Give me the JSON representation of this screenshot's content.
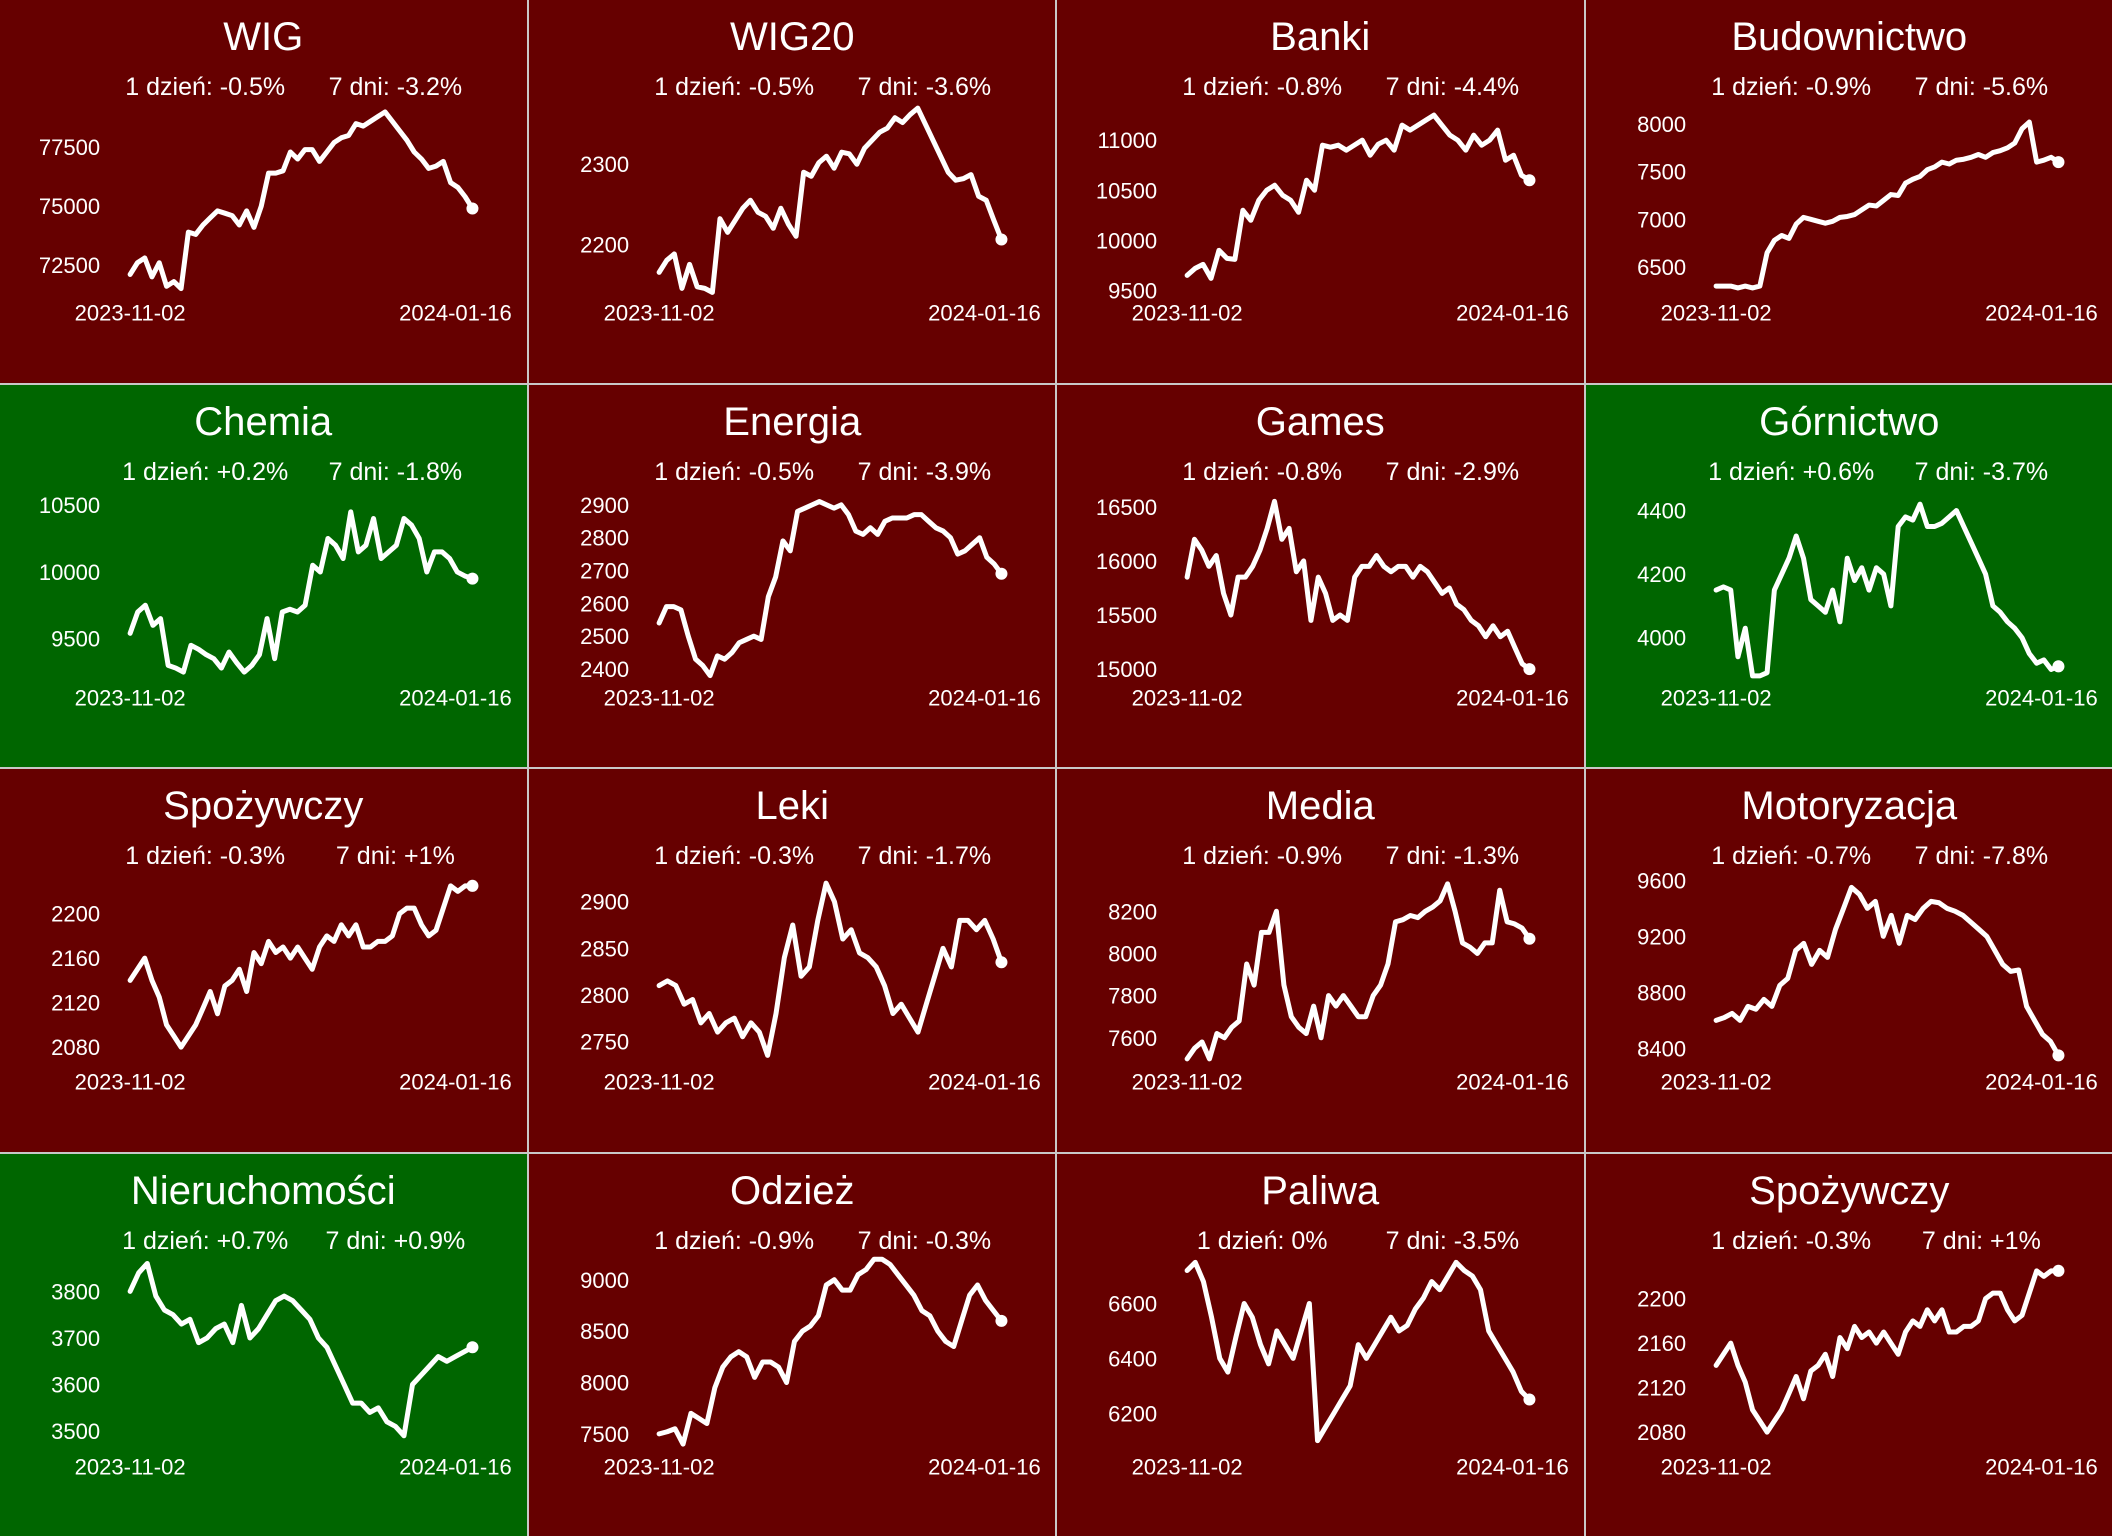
{
  "colors": {
    "down": "#660000",
    "up": "#006600",
    "line": "#ffffff",
    "border": "#c8c8c8"
  },
  "chart_data": [
    {
      "type": "line",
      "title": "WIG",
      "color": "down",
      "day_label": "1 dzień: -0.5%",
      "week_label": "7 dni: -3.2%",
      "x_start": "2023-11-02",
      "x_end": "2024-01-16",
      "yticks": [
        "72500",
        "75000",
        "77500"
      ],
      "ylim": [
        71000,
        79500
      ],
      "values": [
        72100,
        72600,
        72800,
        72000,
        72600,
        71600,
        71800,
        71500,
        73900,
        73800,
        74200,
        74500,
        74800,
        74700,
        74600,
        74200,
        74800,
        74100,
        75000,
        76400,
        76400,
        76500,
        77300,
        77000,
        77400,
        77400,
        76900,
        77300,
        77700,
        77900,
        78000,
        78500,
        78400,
        78600,
        78800,
        79000,
        78600,
        78200,
        77800,
        77300,
        77000,
        76600,
        76700,
        76900,
        76000,
        75800,
        75400,
        74900
      ]
    },
    {
      "type": "line",
      "title": "WIG20",
      "color": "down",
      "day_label": "1 dzień: -0.5%",
      "week_label": "7 dni: -3.6%",
      "x_start": "2023-11-02",
      "x_end": "2024-01-16",
      "yticks": [
        "2200",
        "2300"
      ],
      "ylim": [
        2130,
        2380
      ],
      "values": [
        2165,
        2180,
        2188,
        2145,
        2175,
        2147,
        2145,
        2140,
        2232,
        2215,
        2230,
        2245,
        2255,
        2240,
        2235,
        2220,
        2245,
        2225,
        2210,
        2290,
        2285,
        2302,
        2310,
        2295,
        2315,
        2313,
        2300,
        2320,
        2330,
        2340,
        2345,
        2358,
        2352,
        2362,
        2370,
        2350,
        2330,
        2310,
        2290,
        2280,
        2282,
        2287,
        2260,
        2255,
        2230,
        2206
      ]
    },
    {
      "type": "line",
      "title": "Banki",
      "color": "down",
      "day_label": "1 dzień: -0.8%",
      "week_label": "7 dni: -4.4%",
      "x_start": "2023-11-02",
      "x_end": "2024-01-16",
      "yticks": [
        "9500",
        "10000",
        "10500",
        "11000"
      ],
      "ylim": [
        9400,
        11400
      ],
      "values": [
        9650,
        9720,
        9760,
        9620,
        9900,
        9820,
        9810,
        10300,
        10200,
        10400,
        10500,
        10550,
        10450,
        10400,
        10280,
        10600,
        10500,
        10950,
        10930,
        10950,
        10900,
        10950,
        11000,
        10850,
        10960,
        11000,
        10900,
        11150,
        11100,
        11150,
        11200,
        11250,
        11150,
        11050,
        11000,
        10900,
        11050,
        10950,
        11000,
        11100,
        10800,
        10850,
        10650,
        10600
      ]
    },
    {
      "type": "line",
      "title": "Budownictwo",
      "color": "down",
      "day_label": "1 dzień: -0.9%",
      "week_label": "7 dni: -5.6%",
      "x_start": "2023-11-02",
      "x_end": "2024-01-16",
      "yticks": [
        "6500",
        "7000",
        "7500",
        "8000"
      ],
      "ylim": [
        6150,
        8250
      ],
      "values": [
        6300,
        6300,
        6300,
        6280,
        6300,
        6280,
        6300,
        6650,
        6780,
        6830,
        6800,
        6950,
        7020,
        7000,
        6980,
        6960,
        6980,
        7020,
        7030,
        7050,
        7100,
        7150,
        7140,
        7200,
        7260,
        7250,
        7380,
        7420,
        7450,
        7520,
        7550,
        7600,
        7580,
        7620,
        7630,
        7650,
        7680,
        7650,
        7700,
        7720,
        7750,
        7800,
        7950,
        8020,
        7600,
        7620,
        7650,
        7600
      ]
    },
    {
      "type": "line",
      "title": "Chemia",
      "color": "up",
      "day_label": "1 dzień: +0.2%",
      "week_label": "7 dni: -1.8%",
      "x_start": "2023-11-02",
      "x_end": "2024-01-16",
      "yticks": [
        "9500",
        "10000",
        "10500"
      ],
      "ylim": [
        9150,
        10650
      ],
      "values": [
        9540,
        9700,
        9750,
        9600,
        9650,
        9300,
        9280,
        9250,
        9450,
        9420,
        9380,
        9350,
        9280,
        9400,
        9320,
        9250,
        9300,
        9380,
        9650,
        9350,
        9700,
        9720,
        9700,
        9750,
        10050,
        10000,
        10250,
        10200,
        10100,
        10450,
        10150,
        10200,
        10400,
        10100,
        10150,
        10200,
        10400,
        10350,
        10250,
        10000,
        10150,
        10150,
        10100,
        10000,
        9970,
        9950
      ]
    },
    {
      "type": "line",
      "title": "Energia",
      "color": "down",
      "day_label": "1 dzień: -0.5%",
      "week_label": "7 dni: -3.9%",
      "x_start": "2023-11-02",
      "x_end": "2024-01-16",
      "yticks": [
        "2400",
        "2500",
        "2600",
        "2700",
        "2800",
        "2900"
      ],
      "ylim": [
        2350,
        2960
      ],
      "values": [
        2540,
        2590,
        2590,
        2580,
        2500,
        2430,
        2410,
        2380,
        2440,
        2430,
        2450,
        2480,
        2490,
        2500,
        2490,
        2620,
        2680,
        2790,
        2760,
        2880,
        2890,
        2900,
        2910,
        2900,
        2890,
        2900,
        2870,
        2820,
        2810,
        2830,
        2810,
        2850,
        2860,
        2860,
        2860,
        2870,
        2870,
        2850,
        2830,
        2820,
        2800,
        2750,
        2760,
        2780,
        2800,
        2740,
        2720,
        2690
      ]
    },
    {
      "type": "line",
      "title": "Games",
      "color": "down",
      "day_label": "1 dzień: -0.8%",
      "week_label": "7 dni: -2.9%",
      "x_start": "2023-11-02",
      "x_end": "2024-01-16",
      "yticks": [
        "15000",
        "15500",
        "16000",
        "16500"
      ],
      "ylim": [
        14850,
        16700
      ],
      "values": [
        15850,
        16200,
        16100,
        15950,
        16050,
        15700,
        15500,
        15850,
        15850,
        15950,
        16100,
        16300,
        16550,
        16200,
        16300,
        15900,
        16000,
        15450,
        15850,
        15700,
        15450,
        15500,
        15450,
        15850,
        15950,
        15950,
        16050,
        15950,
        15900,
        15950,
        15950,
        15850,
        15950,
        15900,
        15800,
        15700,
        15750,
        15600,
        15550,
        15450,
        15400,
        15300,
        15400,
        15300,
        15350,
        15200,
        15050,
        15000
      ]
    },
    {
      "type": "line",
      "title": "Górnictwo",
      "color": "up",
      "day_label": "1 dzień: +0.6%",
      "week_label": "7 dni: -3.7%",
      "x_start": "2023-11-02",
      "x_end": "2024-01-16",
      "yticks": [
        "4000",
        "4200",
        "4400"
      ],
      "ylim": [
        3850,
        4480
      ],
      "values": [
        4150,
        4160,
        4150,
        3940,
        4030,
        3880,
        3880,
        3890,
        4150,
        4200,
        4250,
        4320,
        4250,
        4120,
        4100,
        4080,
        4150,
        4050,
        4250,
        4180,
        4220,
        4150,
        4220,
        4200,
        4100,
        4350,
        4380,
        4370,
        4420,
        4350,
        4350,
        4360,
        4380,
        4400,
        4350,
        4300,
        4250,
        4200,
        4100,
        4080,
        4050,
        4030,
        4000,
        3950,
        3920,
        3930,
        3900,
        3910
      ]
    },
    {
      "type": "line",
      "title": "Spożywczy",
      "color": "down",
      "day_label": "1 dzień: -0.3%",
      "week_label": "7 dni: +1%",
      "x_start": "2023-11-02",
      "x_end": "2024-01-16",
      "yticks": [
        "2080",
        "2120",
        "2160",
        "2200"
      ],
      "ylim": [
        2060,
        2240
      ],
      "values": [
        2140,
        2150,
        2160,
        2140,
        2125,
        2100,
        2090,
        2080,
        2090,
        2100,
        2115,
        2130,
        2110,
        2135,
        2140,
        2150,
        2130,
        2165,
        2155,
        2175,
        2165,
        2170,
        2160,
        2170,
        2160,
        2150,
        2170,
        2180,
        2175,
        2190,
        2180,
        2190,
        2170,
        2170,
        2175,
        2175,
        2180,
        2200,
        2205,
        2205,
        2190,
        2180,
        2185,
        2205,
        2225,
        2220,
        2225,
        2225
      ]
    },
    {
      "type": "line",
      "title": "Leki",
      "color": "down",
      "day_label": "1 dzień: -0.3%",
      "week_label": "7 dni: -1.7%",
      "x_start": "2023-11-02",
      "x_end": "2024-01-16",
      "yticks": [
        "2750",
        "2800",
        "2850",
        "2900"
      ],
      "ylim": [
        2720,
        2935
      ],
      "values": [
        2810,
        2815,
        2810,
        2790,
        2795,
        2770,
        2780,
        2760,
        2770,
        2775,
        2755,
        2770,
        2760,
        2735,
        2780,
        2840,
        2875,
        2820,
        2830,
        2880,
        2920,
        2900,
        2860,
        2870,
        2845,
        2840,
        2830,
        2810,
        2780,
        2790,
        2775,
        2760,
        2790,
        2820,
        2850,
        2830,
        2880,
        2880,
        2870,
        2880,
        2860,
        2835
      ]
    },
    {
      "type": "line",
      "title": "Media",
      "color": "down",
      "day_label": "1 dzień: -0.9%",
      "week_label": "7 dni: -1.3%",
      "x_start": "2023-11-02",
      "x_end": "2024-01-16",
      "yticks": [
        "7600",
        "7800",
        "8000",
        "8200"
      ],
      "ylim": [
        7450,
        8400
      ],
      "values": [
        7500,
        7550,
        7580,
        7500,
        7620,
        7600,
        7650,
        7680,
        7950,
        7850,
        8100,
        8100,
        8200,
        7850,
        7700,
        7650,
        7620,
        7750,
        7600,
        7800,
        7750,
        7800,
        7750,
        7700,
        7700,
        7800,
        7850,
        7950,
        8150,
        8160,
        8180,
        8170,
        8200,
        8220,
        8250,
        8330,
        8200,
        8050,
        8030,
        8000,
        8050,
        8050,
        8300,
        8150,
        8140,
        8120,
        8070
      ]
    },
    {
      "type": "line",
      "title": "Motoryzacja",
      "color": "down",
      "day_label": "1 dzień: -0.7%",
      "week_label": "7 dni: -7.8%",
      "x_start": "2023-11-02",
      "x_end": "2024-01-16",
      "yticks": [
        "8400",
        "8800",
        "9200",
        "9600"
      ],
      "ylim": [
        8250,
        9680
      ],
      "values": [
        8600,
        8620,
        8650,
        8600,
        8700,
        8680,
        8750,
        8700,
        8850,
        8900,
        9100,
        9150,
        9000,
        9100,
        9050,
        9250,
        9400,
        9550,
        9500,
        9400,
        9450,
        9200,
        9350,
        9150,
        9350,
        9320,
        9400,
        9450,
        9440,
        9400,
        9380,
        9350,
        9300,
        9250,
        9200,
        9100,
        9000,
        8950,
        8960,
        8700,
        8600,
        8500,
        8450,
        8350
      ]
    },
    {
      "type": "line",
      "title": "Nieruchomości",
      "color": "up",
      "day_label": "1 dzień: +0.7%",
      "week_label": "7 dni: +0.9%",
      "x_start": "2023-11-02",
      "x_end": "2024-01-16",
      "yticks": [
        "3500",
        "3600",
        "3700",
        "3800"
      ],
      "ylim": [
        3450,
        3880
      ],
      "values": [
        3800,
        3840,
        3860,
        3790,
        3760,
        3750,
        3730,
        3740,
        3690,
        3700,
        3720,
        3730,
        3690,
        3770,
        3700,
        3720,
        3750,
        3780,
        3790,
        3780,
        3760,
        3740,
        3700,
        3680,
        3640,
        3600,
        3560,
        3560,
        3540,
        3550,
        3520,
        3510,
        3490,
        3600,
        3620,
        3640,
        3660,
        3650,
        3660,
        3670,
        3680
      ]
    },
    {
      "type": "line",
      "title": "Odzież",
      "color": "down",
      "day_label": "1 dzień: -0.9%",
      "week_label": "7 dni: -0.3%",
      "x_start": "2023-11-02",
      "x_end": "2024-01-16",
      "yticks": [
        "7500",
        "8000",
        "8500",
        "9000"
      ],
      "ylim": [
        7300,
        9250
      ],
      "values": [
        7500,
        7520,
        7550,
        7400,
        7700,
        7650,
        7600,
        7950,
        8150,
        8250,
        8300,
        8250,
        8050,
        8200,
        8200,
        8150,
        8000,
        8400,
        8500,
        8550,
        8650,
        8950,
        9000,
        8900,
        8900,
        9050,
        9100,
        9200,
        9200,
        9150,
        9050,
        8950,
        8850,
        8700,
        8650,
        8500,
        8400,
        8350,
        8600,
        8850,
        8950,
        8800,
        8700,
        8600
      ]
    },
    {
      "type": "line",
      "title": "Paliwa",
      "color": "down",
      "day_label": "1 dzień: 0%",
      "week_label": "7 dni: -3.5%",
      "x_start": "2023-11-02",
      "x_end": "2024-01-16",
      "yticks": [
        "6200",
        "6400",
        "6600"
      ],
      "ylim": [
        6050,
        6780
      ],
      "values": [
        6720,
        6750,
        6680,
        6550,
        6400,
        6350,
        6480,
        6600,
        6550,
        6450,
        6380,
        6500,
        6450,
        6400,
        6500,
        6600,
        6100,
        6150,
        6200,
        6250,
        6300,
        6450,
        6400,
        6450,
        6500,
        6550,
        6500,
        6520,
        6580,
        6620,
        6680,
        6650,
        6700,
        6750,
        6720,
        6700,
        6650,
        6500,
        6450,
        6400,
        6350,
        6280,
        6250
      ]
    },
    {
      "type": "line",
      "title": "Spożywczy",
      "color": "down",
      "day_label": "1 dzień: -0.3%",
      "week_label": "7 dni: +1%",
      "x_start": "2023-11-02",
      "x_end": "2024-01-16",
      "yticks": [
        "2080",
        "2120",
        "2160",
        "2200"
      ],
      "ylim": [
        2060,
        2240
      ],
      "values": [
        2140,
        2150,
        2160,
        2140,
        2125,
        2100,
        2090,
        2080,
        2090,
        2100,
        2115,
        2130,
        2110,
        2135,
        2140,
        2150,
        2130,
        2165,
        2155,
        2175,
        2165,
        2170,
        2160,
        2170,
        2160,
        2150,
        2170,
        2180,
        2175,
        2190,
        2180,
        2190,
        2170,
        2170,
        2175,
        2175,
        2180,
        2200,
        2205,
        2205,
        2190,
        2180,
        2185,
        2205,
        2225,
        2220,
        2225,
        2225
      ]
    }
  ]
}
